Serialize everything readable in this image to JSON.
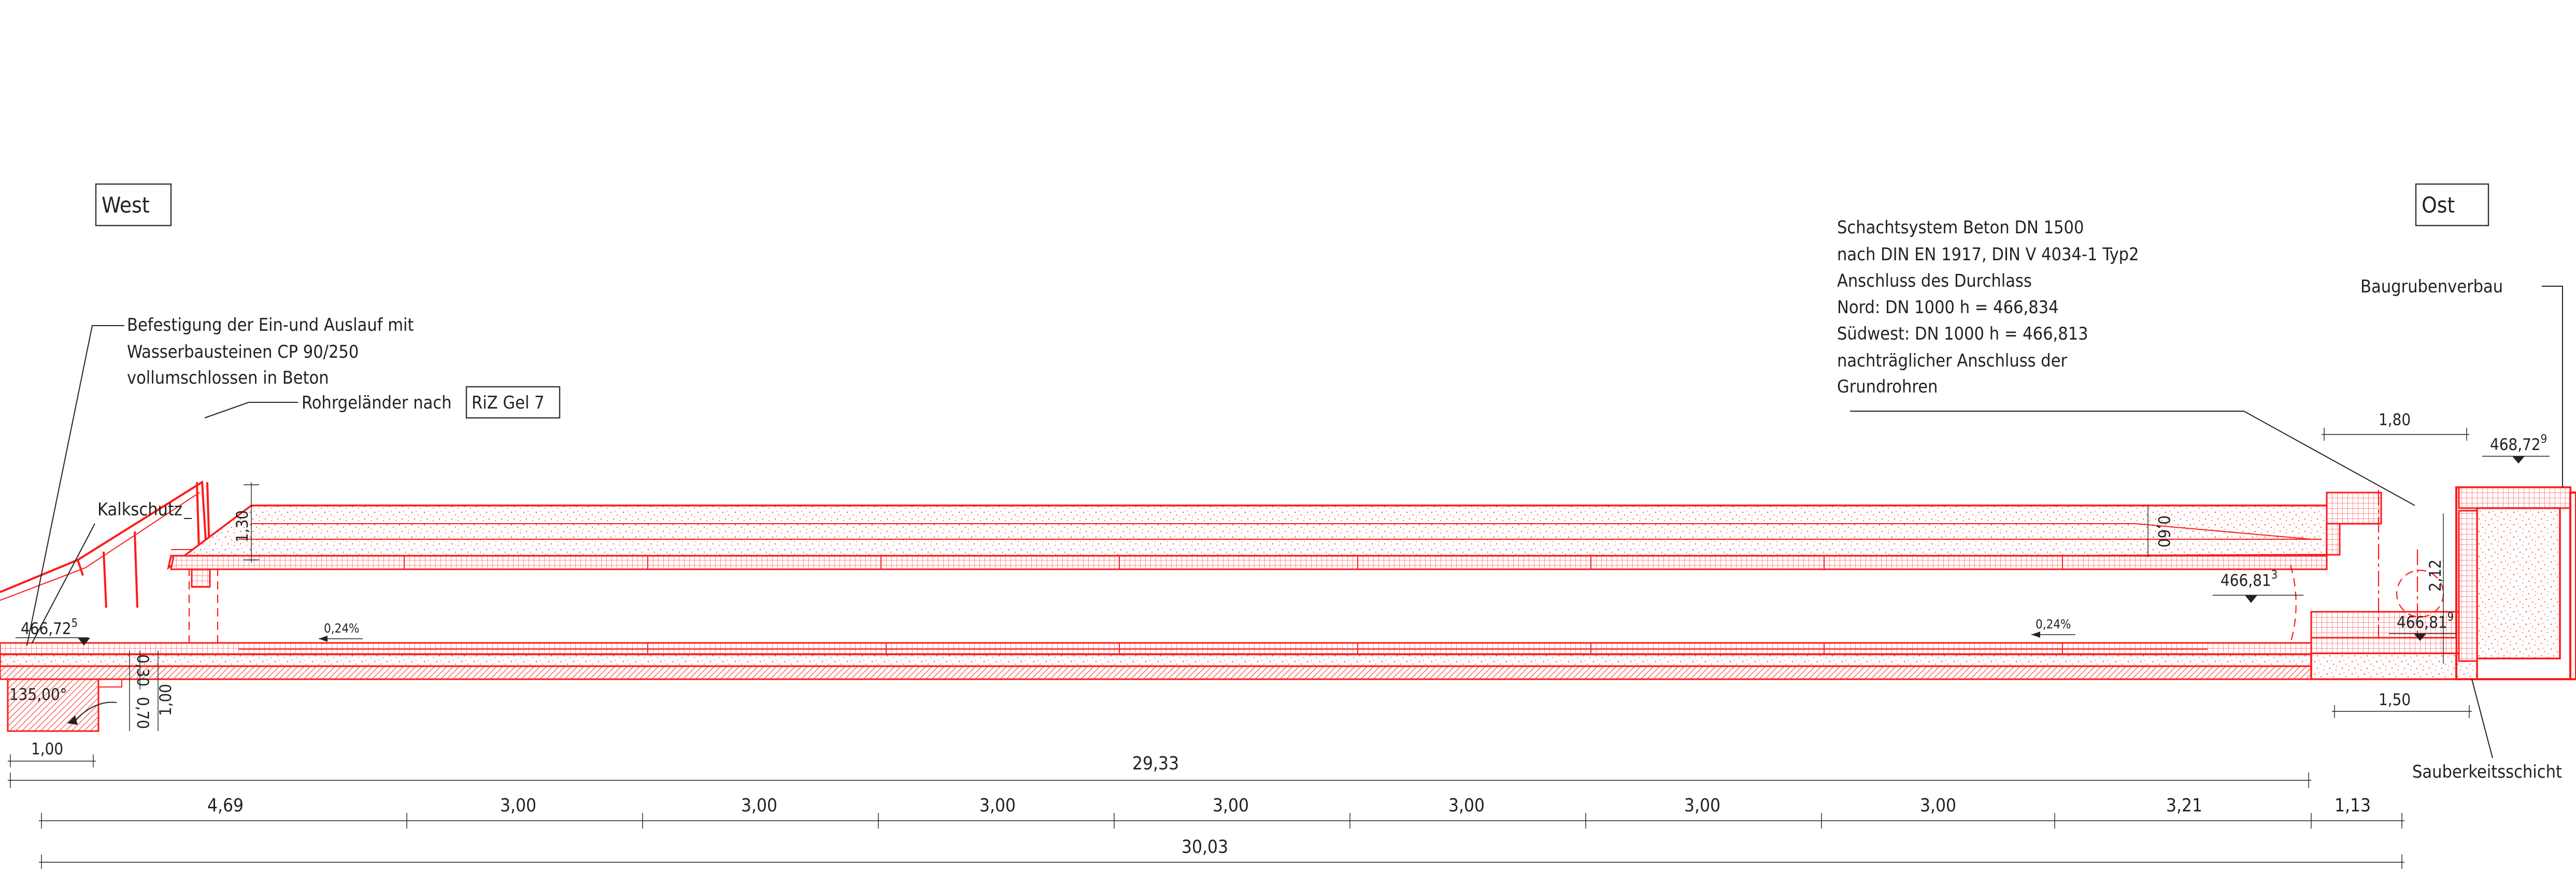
{
  "labels": {
    "west": "West",
    "ost": "Ost",
    "befestigung": [
      "Befestigung der Ein-und Auslauf mit",
      "Wasserbausteinen CP 90/250",
      "vollumschlossen in Beton"
    ],
    "rohrgelaender_text": "Rohrgeländer nach",
    "rohrgelaender_box": "RiZ Gel 7",
    "kalkschutz": "Kalkschutz",
    "schacht": [
      "Schachtsystem Beton DN 1500",
      "nach DIN EN 1917, DIN V 4034-1 Typ2",
      "Anschluss des Durchlass",
      "Nord: DN 1000 h = 466,834",
      "Südwest: DN 1000 h = 466,813",
      "nachträglicher Anschluss der",
      "Grundrohren"
    ],
    "baugrubenverbau": "Baugrubenverbau",
    "sauberkeitsschicht": "Sauberkeitsschicht"
  },
  "elevations": {
    "e1_main": "466,72",
    "e1_sup": "5",
    "e2_main": "466,81",
    "e2_sup": "3",
    "e3_main": "466,81",
    "e3_sup": "9",
    "e4_main": "468,72",
    "e4_sup": "9"
  },
  "angle": "135,00°",
  "slopes": {
    "left": "0,24%",
    "right": "0,24%"
  },
  "dimensions": {
    "d_130": "1,30",
    "d_060": "0,60",
    "d_030": "0,30",
    "d_070": "0,70",
    "d_100v": "1,00",
    "d_212": "2,12",
    "d_180": "1,80",
    "d_150": "1,50",
    "d_100h": "1,00",
    "d_2933": "29,33",
    "d_3003": "30,03",
    "chain": [
      "4,69",
      "3,00",
      "3,00",
      "3,00",
      "3,00",
      "3,00",
      "3,00",
      "3,00",
      "3,21",
      "1,13"
    ]
  }
}
